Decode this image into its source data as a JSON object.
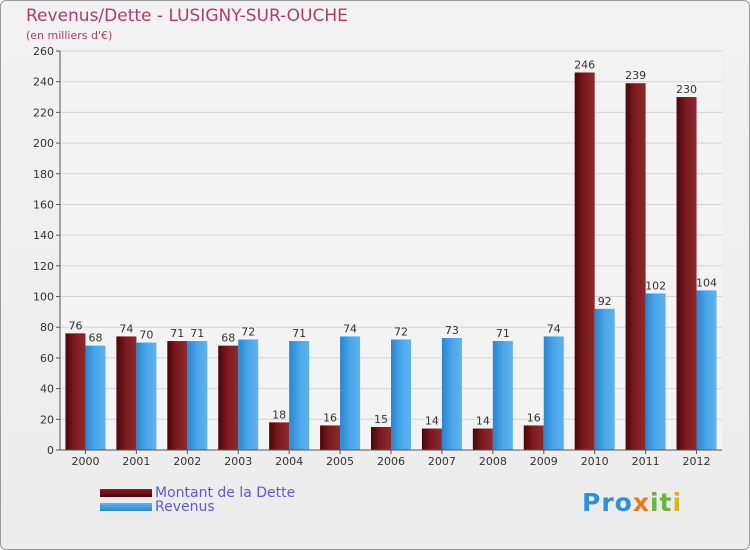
{
  "title": "Revenus/Dette - LUSIGNY-SUR-OUCHE",
  "subtitle": "(en milliers d'€)",
  "logo": [
    "Pro",
    "x",
    "it",
    "i"
  ],
  "colors": {
    "dette": "#6e0e12",
    "revenus": "#2f8fd8",
    "text": "#b23a6b",
    "legend_text": "#5b5bd6"
  },
  "chart_data": {
    "type": "bar",
    "categories": [
      "2000",
      "2001",
      "2002",
      "2003",
      "2004",
      "2005",
      "2006",
      "2007",
      "2008",
      "2009",
      "2010",
      "2011",
      "2012"
    ],
    "series": [
      {
        "name": "Montant de la Dette",
        "values": [
          76,
          74,
          71,
          68,
          18,
          16,
          15,
          14,
          14,
          16,
          246,
          239,
          230
        ]
      },
      {
        "name": "Revenus",
        "values": [
          68,
          70,
          71,
          72,
          71,
          74,
          72,
          73,
          71,
          74,
          92,
          102,
          104
        ]
      }
    ],
    "ylim": [
      0,
      260
    ],
    "yticks": [
      0,
      20,
      40,
      60,
      80,
      100,
      120,
      140,
      160,
      180,
      200,
      220,
      240,
      260
    ],
    "grid": true,
    "legend_position": "bottom-left"
  }
}
